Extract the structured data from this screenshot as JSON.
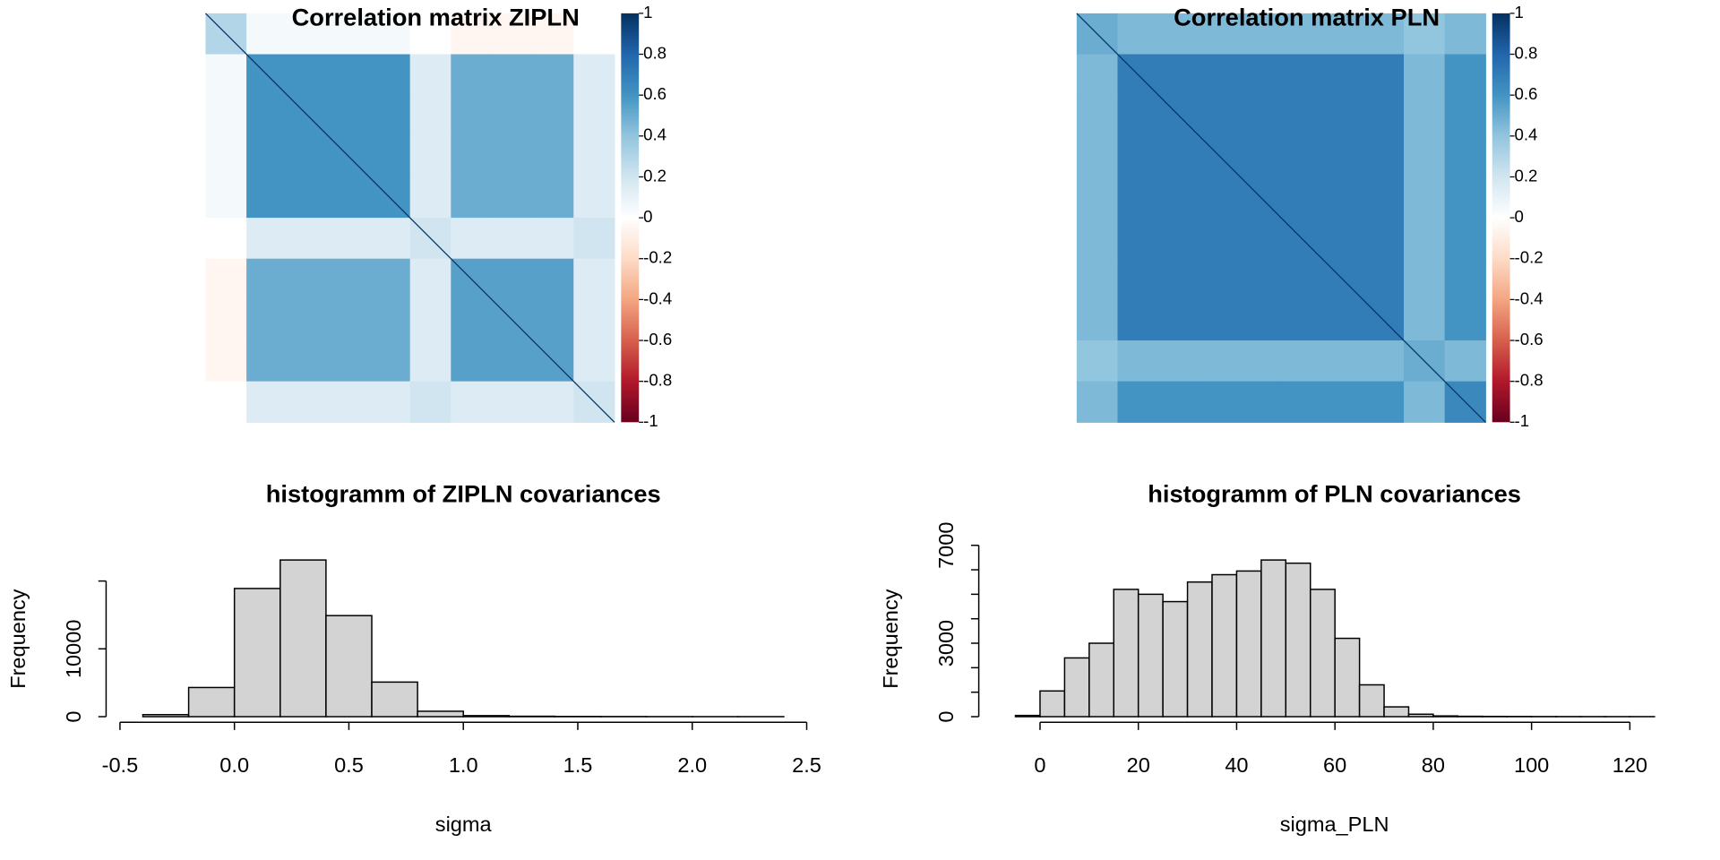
{
  "chart_data": [
    {
      "type": "heatmap",
      "title": "Correlation matrix ZIPLN",
      "values": [
        [
          0.3,
          0.05,
          0.05,
          0.05,
          0.05,
          0,
          -0.05,
          -0.05,
          -0.05,
          0
        ],
        [
          0.05,
          0.6,
          0.6,
          0.6,
          0.6,
          0.15,
          0.5,
          0.5,
          0.5,
          0.15
        ],
        [
          0.05,
          0.6,
          0.6,
          0.6,
          0.6,
          0.15,
          0.5,
          0.5,
          0.5,
          0.15
        ],
        [
          0.05,
          0.6,
          0.6,
          0.6,
          0.6,
          0.15,
          0.5,
          0.5,
          0.5,
          0.15
        ],
        [
          0.05,
          0.6,
          0.6,
          0.6,
          0.6,
          0.15,
          0.5,
          0.5,
          0.5,
          0.15
        ],
        [
          0,
          0.15,
          0.15,
          0.15,
          0.15,
          0.2,
          0.15,
          0.15,
          0.15,
          0.2
        ],
        [
          -0.05,
          0.5,
          0.5,
          0.5,
          0.5,
          0.15,
          0.55,
          0.55,
          0.55,
          0.15
        ],
        [
          -0.05,
          0.5,
          0.5,
          0.5,
          0.5,
          0.15,
          0.55,
          0.55,
          0.55,
          0.15
        ],
        [
          -0.05,
          0.5,
          0.5,
          0.5,
          0.5,
          0.15,
          0.55,
          0.55,
          0.55,
          0.15
        ],
        [
          0,
          0.15,
          0.15,
          0.15,
          0.15,
          0.2,
          0.15,
          0.15,
          0.15,
          0.2
        ]
      ],
      "zlim": [
        -1,
        1
      ],
      "zticks": [
        1,
        0.8,
        0.6,
        0.4,
        0.2,
        0,
        -0.2,
        -0.4,
        -0.6,
        -0.8,
        -1
      ],
      "colors": [
        "#67001f",
        "#b2182b",
        "#d6604d",
        "#f4a582",
        "#fddbc7",
        "#ffffff",
        "#d1e5f0",
        "#92c5de",
        "#4393c3",
        "#2166ac",
        "#053061"
      ]
    },
    {
      "type": "heatmap",
      "title": "Correlation matrix PLN",
      "values": [
        [
          0.5,
          0.45,
          0.45,
          0.45,
          0.45,
          0.45,
          0.45,
          0.45,
          0.4,
          0.45
        ],
        [
          0.45,
          0.7,
          0.7,
          0.7,
          0.7,
          0.7,
          0.7,
          0.7,
          0.45,
          0.6
        ],
        [
          0.45,
          0.7,
          0.7,
          0.7,
          0.7,
          0.7,
          0.7,
          0.7,
          0.45,
          0.6
        ],
        [
          0.45,
          0.7,
          0.7,
          0.7,
          0.7,
          0.7,
          0.7,
          0.7,
          0.45,
          0.6
        ],
        [
          0.45,
          0.7,
          0.7,
          0.7,
          0.7,
          0.7,
          0.7,
          0.7,
          0.45,
          0.6
        ],
        [
          0.45,
          0.7,
          0.7,
          0.7,
          0.7,
          0.7,
          0.7,
          0.7,
          0.45,
          0.6
        ],
        [
          0.45,
          0.7,
          0.7,
          0.7,
          0.7,
          0.7,
          0.7,
          0.7,
          0.45,
          0.6
        ],
        [
          0.45,
          0.7,
          0.7,
          0.7,
          0.7,
          0.7,
          0.7,
          0.7,
          0.45,
          0.6
        ],
        [
          0.4,
          0.45,
          0.45,
          0.45,
          0.45,
          0.45,
          0.45,
          0.45,
          0.5,
          0.45
        ],
        [
          0.45,
          0.6,
          0.6,
          0.6,
          0.6,
          0.6,
          0.6,
          0.6,
          0.45,
          0.65
        ]
      ],
      "zlim": [
        -1,
        1
      ],
      "zticks": [
        1,
        0.8,
        0.6,
        0.4,
        0.2,
        0,
        -0.2,
        -0.4,
        -0.6,
        -0.8,
        -1
      ],
      "colors": [
        "#67001f",
        "#b2182b",
        "#d6604d",
        "#f4a582",
        "#fddbc7",
        "#ffffff",
        "#d1e5f0",
        "#92c5de",
        "#4393c3",
        "#2166ac",
        "#053061"
      ]
    },
    {
      "type": "histogram",
      "title": "histogramm of ZIPLN covariances",
      "x_label": "sigma",
      "y_label": "Frequency",
      "bins": [
        -0.4,
        -0.2,
        0,
        0.2,
        0.4,
        0.6,
        0.8,
        1,
        1.2,
        1.4,
        1.6,
        1.8,
        2,
        2.2,
        2.4
      ],
      "values": [
        300,
        4300,
        18900,
        23100,
        14900,
        5100,
        800,
        150,
        60,
        30,
        20,
        10,
        5,
        5
      ],
      "color": "#d3d3d3",
      "xlim": [
        -0.512,
        2.512
      ],
      "xticks": [
        -0.5,
        {
          "value": 0,
          "label": "0.0"
        },
        0.5,
        {
          "value": 1,
          "label": "1.0"
        },
        1.5,
        {
          "value": 2,
          "label": "2.0"
        },
        2.5
      ],
      "ylim": [
        0,
        23100
      ],
      "yticks": [
        0,
        10000,
        {
          "value": 20000,
          "label": null
        }
      ]
    },
    {
      "type": "histogram",
      "title": "histogramm of PLN covariances",
      "x_label": "sigma_PLN",
      "y_label": "Frequency",
      "bins": [
        -5,
        0,
        5,
        10,
        15,
        20,
        25,
        30,
        35,
        40,
        45,
        50,
        55,
        60,
        65,
        70,
        75,
        80,
        85,
        90,
        95,
        100,
        105,
        110,
        115,
        120,
        125
      ],
      "values": [
        50,
        1050,
        2400,
        3000,
        5200,
        5000,
        4700,
        5500,
        5800,
        5950,
        6400,
        6270,
        5200,
        3200,
        1300,
        400,
        100,
        30,
        15,
        10,
        8,
        5,
        4,
        3,
        2,
        2
      ],
      "color": "#d3d3d3",
      "xlim": [
        -10.2,
        130.2
      ],
      "xticks": [
        0,
        20,
        40,
        60,
        80,
        100,
        120
      ],
      "ylim": [
        0,
        6400
      ],
      "yticks": [
        0,
        {
          "value": 1000,
          "label": null
        },
        {
          "value": 2000,
          "label": null
        },
        3000,
        {
          "value": 4000,
          "label": null
        },
        {
          "value": 5000,
          "label": null
        },
        {
          "value": 6000,
          "label": null
        },
        7000
      ]
    }
  ]
}
